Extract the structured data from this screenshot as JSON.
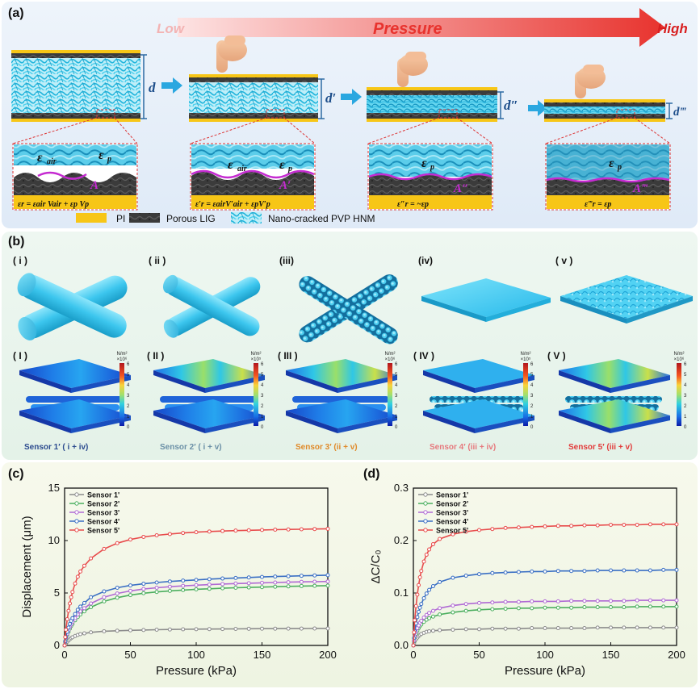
{
  "panel_a": {
    "label": "(a)",
    "arrow_low": "Low",
    "arrow_title": "Pressure",
    "arrow_high": "High",
    "gaps": [
      "d",
      "d′",
      "d″",
      "d‴"
    ],
    "stages": [
      {
        "eps_air": "ε",
        "eps_air_sub": "air",
        "eps_p": "ε",
        "eps_p_sub": "p",
        "area": "A",
        "formula": "εr = εair Vair + εp Vp"
      },
      {
        "eps_air": "ε",
        "eps_air_sub": "air",
        "eps_p": "ε",
        "eps_p_sub": "p",
        "area": "A′",
        "formula": "ε′r = εairV′air + εpV′p"
      },
      {
        "eps_air": "",
        "eps_air_sub": "",
        "eps_p": "ε",
        "eps_p_sub": "p",
        "area": "A″",
        "formula": "ε″r = ~εp"
      },
      {
        "eps_air": "",
        "eps_air_sub": "",
        "eps_p": "ε",
        "eps_p_sub": "p",
        "area": "A‴",
        "formula": "ε‴r = εp"
      }
    ],
    "legend": [
      {
        "label": "PI",
        "color": "#f7c617"
      },
      {
        "label": "Porous LIG",
        "color": "#3a3a3a"
      },
      {
        "label": "Nano-cracked PVP HNM",
        "color": "#3cc6e6"
      }
    ]
  },
  "panel_b": {
    "label": "(b)",
    "top_labels": [
      "( i )",
      "( ii )",
      "(iii)",
      "(iv)",
      "( v )"
    ],
    "bottom_labels": [
      "( I )",
      "( II )",
      "( III )",
      "( IV )",
      "( V )"
    ],
    "colorbar_unit": "N/m²",
    "colorbar_scales": [
      "×10⁶",
      "×10⁵",
      "×10⁶",
      "×10⁵",
      "×10⁶"
    ],
    "colorbar_ticks": [
      "6",
      "5",
      "4",
      "3",
      "2",
      "1",
      "0"
    ],
    "sensors": [
      {
        "label": "Sensor 1′ ( i + iv)",
        "color": "#2b4a8e"
      },
      {
        "label": "Sensor 2′ ( i + v)",
        "color": "#6a8fa6"
      },
      {
        "label": "Sensor 3′ (ii + v)",
        "color": "#e08a2a"
      },
      {
        "label": "Sensor 4′ (iii + iv)",
        "color": "#e6787d"
      },
      {
        "label": "Sensor 5′ (iii + v)",
        "color": "#e23a3a"
      }
    ]
  },
  "panel_c": {
    "label": "(c)",
    "chart_data": {
      "type": "line",
      "xlabel": "Pressure (kPa)",
      "ylabel": "Displacement (μm)",
      "xlim": [
        0,
        200
      ],
      "ylim": [
        0,
        15
      ],
      "xticks": [
        "0",
        "50",
        "100",
        "150",
        "200"
      ],
      "yticks": [
        "0",
        "5",
        "10",
        "15"
      ],
      "legend_position": "top-left",
      "x": [
        0,
        0.5,
        1,
        2,
        3,
        4,
        5,
        6,
        8,
        10,
        12,
        15,
        20,
        30,
        40,
        50,
        60,
        70,
        80,
        90,
        100,
        110,
        120,
        130,
        140,
        150,
        160,
        170,
        180,
        190,
        200
      ],
      "series": [
        {
          "name": "Sensor 1'",
          "color": "#8c8c8c",
          "values": [
            0,
            0.1,
            0.2,
            0.35,
            0.5,
            0.6,
            0.7,
            0.78,
            0.9,
            1.0,
            1.08,
            1.15,
            1.25,
            1.35,
            1.4,
            1.44,
            1.47,
            1.5,
            1.52,
            1.54,
            1.55,
            1.56,
            1.57,
            1.58,
            1.59,
            1.6,
            1.6,
            1.61,
            1.61,
            1.62,
            1.62
          ]
        },
        {
          "name": "Sensor 2'",
          "color": "#4caf5f",
          "values": [
            0,
            0.3,
            0.6,
            1.0,
            1.3,
            1.6,
            1.85,
            2.05,
            2.4,
            2.7,
            2.95,
            3.25,
            3.65,
            4.2,
            4.55,
            4.8,
            4.98,
            5.1,
            5.2,
            5.28,
            5.35,
            5.4,
            5.45,
            5.5,
            5.53,
            5.56,
            5.6,
            5.63,
            5.66,
            5.68,
            5.7
          ]
        },
        {
          "name": "Sensor 3'",
          "color": "#b06ad4",
          "values": [
            0,
            0.35,
            0.7,
            1.1,
            1.45,
            1.75,
            2.0,
            2.25,
            2.6,
            2.95,
            3.25,
            3.55,
            4.0,
            4.6,
            4.95,
            5.2,
            5.38,
            5.5,
            5.6,
            5.68,
            5.75,
            5.8,
            5.85,
            5.9,
            5.93,
            5.97,
            6.0,
            6.03,
            6.06,
            6.08,
            6.1
          ]
        },
        {
          "name": "Sensor 4'",
          "color": "#3a6fc4",
          "values": [
            0,
            0.4,
            0.8,
            1.3,
            1.7,
            2.05,
            2.35,
            2.6,
            3.0,
            3.4,
            3.7,
            4.05,
            4.6,
            5.15,
            5.5,
            5.72,
            5.88,
            6.0,
            6.1,
            6.18,
            6.25,
            6.32,
            6.38,
            6.43,
            6.48,
            6.53,
            6.57,
            6.6,
            6.64,
            6.67,
            6.7
          ]
        },
        {
          "name": "Sensor 5'",
          "color": "#e84c4c",
          "values": [
            0,
            0.8,
            1.5,
            2.5,
            3.3,
            4.0,
            4.6,
            5.1,
            5.9,
            6.55,
            7.05,
            7.6,
            8.3,
            9.2,
            9.75,
            10.1,
            10.35,
            10.5,
            10.62,
            10.72,
            10.8,
            10.86,
            10.91,
            10.95,
            10.98,
            11.01,
            11.04,
            11.06,
            11.08,
            11.1,
            11.12
          ]
        }
      ]
    }
  },
  "panel_d": {
    "label": "(d)",
    "chart_data": {
      "type": "line",
      "xlabel": "Pressure (kPa)",
      "ylabel": "ΔC/C₀",
      "xlim": [
        0,
        200
      ],
      "ylim": [
        0,
        0.3
      ],
      "xticks": [
        "0",
        "50",
        "100",
        "150",
        "200"
      ],
      "yticks": [
        "0.0",
        "0.1",
        "0.2",
        "0.3"
      ],
      "legend_position": "top-left",
      "x": [
        0,
        0.5,
        1,
        2,
        3,
        4,
        5,
        6,
        8,
        10,
        12,
        15,
        20,
        30,
        40,
        50,
        60,
        70,
        80,
        90,
        100,
        110,
        120,
        130,
        140,
        150,
        160,
        170,
        180,
        190,
        200
      ],
      "series": [
        {
          "name": "Sensor 1'",
          "color": "#8c8c8c",
          "values": [
            0,
            0.004,
            0.008,
            0.012,
            0.015,
            0.018,
            0.02,
            0.022,
            0.024,
            0.026,
            0.027,
            0.028,
            0.029,
            0.03,
            0.031,
            0.031,
            0.032,
            0.032,
            0.032,
            0.033,
            0.033,
            0.033,
            0.033,
            0.033,
            0.034,
            0.034,
            0.034,
            0.034,
            0.034,
            0.034,
            0.034
          ]
        },
        {
          "name": "Sensor 2'",
          "color": "#4caf5f",
          "values": [
            0,
            0.008,
            0.015,
            0.022,
            0.028,
            0.033,
            0.037,
            0.04,
            0.045,
            0.049,
            0.052,
            0.055,
            0.059,
            0.063,
            0.066,
            0.068,
            0.069,
            0.07,
            0.071,
            0.071,
            0.072,
            0.072,
            0.072,
            0.073,
            0.073,
            0.073,
            0.073,
            0.074,
            0.074,
            0.074,
            0.074
          ]
        },
        {
          "name": "Sensor 3'",
          "color": "#b06ad4",
          "values": [
            0,
            0.009,
            0.017,
            0.026,
            0.033,
            0.038,
            0.043,
            0.047,
            0.053,
            0.058,
            0.062,
            0.066,
            0.071,
            0.076,
            0.079,
            0.081,
            0.082,
            0.083,
            0.083,
            0.084,
            0.084,
            0.084,
            0.085,
            0.085,
            0.085,
            0.085,
            0.085,
            0.086,
            0.086,
            0.086,
            0.086
          ]
        },
        {
          "name": "Sensor 4'",
          "color": "#3a6fc4",
          "values": [
            0,
            0.014,
            0.027,
            0.042,
            0.054,
            0.064,
            0.072,
            0.079,
            0.09,
            0.099,
            0.106,
            0.113,
            0.121,
            0.129,
            0.133,
            0.136,
            0.138,
            0.139,
            0.14,
            0.141,
            0.141,
            0.142,
            0.142,
            0.142,
            0.143,
            0.143,
            0.143,
            0.143,
            0.143,
            0.144,
            0.144
          ]
        },
        {
          "name": "Sensor 5'",
          "color": "#e84c4c",
          "values": [
            0,
            0.025,
            0.048,
            0.075,
            0.097,
            0.115,
            0.13,
            0.142,
            0.16,
            0.173,
            0.183,
            0.193,
            0.203,
            0.212,
            0.217,
            0.22,
            0.222,
            0.224,
            0.225,
            0.226,
            0.227,
            0.228,
            0.228,
            0.229,
            0.229,
            0.23,
            0.23,
            0.23,
            0.231,
            0.231,
            0.231
          ]
        }
      ]
    }
  }
}
